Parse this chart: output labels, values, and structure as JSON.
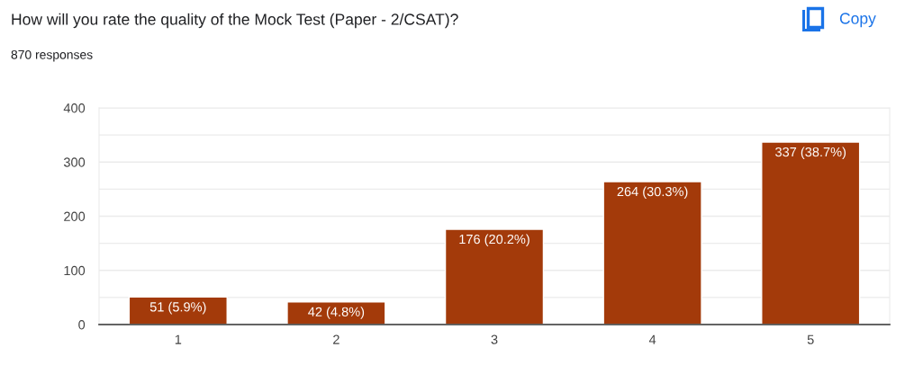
{
  "chart_data": {
    "type": "bar",
    "title": "How will you rate the quality of the Mock Test (Paper - 2/CSAT)?",
    "subtitle": "870 responses",
    "annotations": [
      "Copy"
    ],
    "categories": [
      "1",
      "2",
      "3",
      "4",
      "5"
    ],
    "values": [
      51,
      42,
      176,
      264,
      337
    ],
    "value_labels": [
      "51 (5.9%)",
      "42 (4.8%)",
      "176 (20.2%)",
      "264 (30.3%)",
      "337 (38.7%)"
    ],
    "color": "#a33a0a",
    "ylim": [
      0,
      400
    ],
    "yticks": [
      0,
      {
        "value": 50,
        "label": null
      },
      100,
      {
        "value": 150,
        "label": null
      },
      200,
      {
        "value": 250,
        "label": null
      },
      300,
      {
        "value": 350,
        "label": null
      },
      400
    ],
    "grid": "y"
  }
}
